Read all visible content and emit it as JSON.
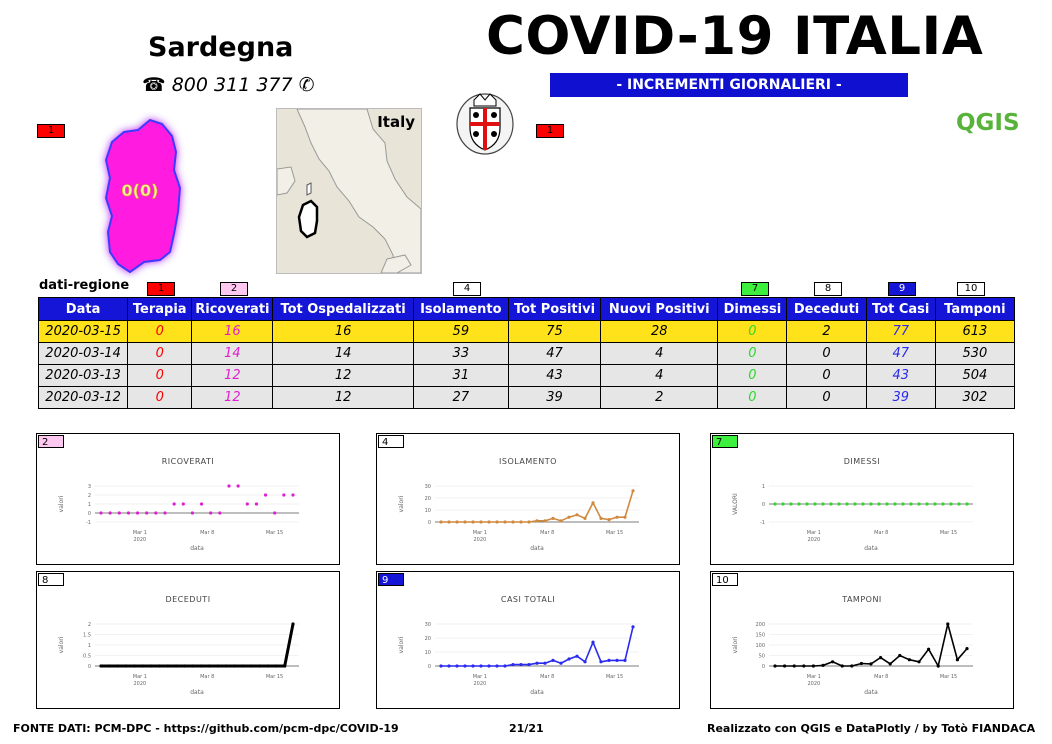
{
  "header": {
    "region": "Sardegna",
    "phone": "☎ 800 311 377",
    "title": "COVID-19 ITALIA",
    "subtitle": "- INCREMENTI GIORNALIERI -",
    "brand": "QGIS"
  },
  "map": {
    "country_label": "Italy",
    "region_value_label": "0(0)",
    "region_color": "#ff1fe0"
  },
  "badges": {
    "terapia": "1",
    "ricoverati": "2",
    "isolamento": "4",
    "dimessi": "7",
    "deceduti": "8",
    "totcasi": "9",
    "tamponi": "10"
  },
  "table": {
    "caption": "dati-regione",
    "headers": [
      "Data",
      "Terapia",
      "Ricoverati",
      "Tot Ospedalizzati",
      "Isolamento",
      "Tot Positivi",
      "Nuovi Positivi",
      "Dimessi",
      "Deceduti",
      "Tot Casi",
      "Tamponi"
    ],
    "rows": [
      [
        "2020-03-15",
        "0",
        "16",
        "16",
        "59",
        "75",
        "28",
        "0",
        "2",
        "77",
        "613"
      ],
      [
        "2020-03-14",
        "0",
        "14",
        "14",
        "33",
        "47",
        "4",
        "0",
        "0",
        "47",
        "530"
      ],
      [
        "2020-03-13",
        "0",
        "12",
        "12",
        "31",
        "43",
        "4",
        "0",
        "0",
        "43",
        "504"
      ],
      [
        "2020-03-12",
        "0",
        "12",
        "12",
        "27",
        "39",
        "2",
        "0",
        "0",
        "39",
        "302"
      ]
    ]
  },
  "chart_data": [
    {
      "type": "scatter",
      "badge": "2",
      "badge_color": "#ffc8f0",
      "title": "RICOVERATI",
      "xlabel": "data",
      "ylabel": "valori",
      "color": "#e020d0",
      "ylim": [
        -1,
        3
      ],
      "yticks": [
        "3",
        "2",
        "1",
        "0",
        "-1"
      ],
      "xticks": [
        "Mar 1\n2020",
        "Mar 8",
        "Mar 15"
      ],
      "values": [
        0,
        0,
        0,
        0,
        0,
        0,
        0,
        0,
        1,
        1,
        0,
        1,
        0,
        0,
        3,
        3,
        1,
        1,
        2,
        0,
        2,
        2
      ]
    },
    {
      "type": "line",
      "badge": "4",
      "badge_color": "#ffffff",
      "title": "ISOLAMENTO",
      "xlabel": "data",
      "ylabel": "valori",
      "color": "#d08a40",
      "ylim": [
        0,
        30
      ],
      "yticks": [
        "30",
        "20",
        "10",
        "0"
      ],
      "xticks": [
        "Mar 1\n2020",
        "Mar 8",
        "Mar 15"
      ],
      "values": [
        0,
        0,
        0,
        0,
        0,
        0,
        0,
        0,
        0,
        0,
        0,
        0,
        1,
        1,
        3,
        1,
        4,
        6,
        3,
        16,
        3,
        2,
        4,
        4,
        26
      ]
    },
    {
      "type": "scatter",
      "badge": "7",
      "badge_color": "#3df03d",
      "title": "DIMESSI",
      "xlabel": "data",
      "ylabel": "VALORI",
      "color": "#2ed82e",
      "ylim": [
        -1,
        1
      ],
      "yticks": [
        "1",
        "0",
        "-1"
      ],
      "xticks": [
        "Mar 1\n2020",
        "Mar 8",
        "Mar 15"
      ],
      "values": [
        0,
        0,
        0,
        0,
        0,
        0,
        0,
        0,
        0,
        0,
        0,
        0,
        0,
        0,
        0,
        0,
        0,
        0,
        0,
        0,
        0,
        0,
        0,
        0,
        0
      ]
    },
    {
      "type": "line",
      "badge": "8",
      "badge_color": "#ffffff",
      "title": "DECEDUTI",
      "xlabel": "data",
      "ylabel": "valori",
      "color": "#000000",
      "ylim": [
        0,
        2
      ],
      "yticks": [
        "2",
        "1.5",
        "1",
        "0.5",
        "0"
      ],
      "xticks": [
        "Mar 1\n2020",
        "Mar 8",
        "Mar 15"
      ],
      "values": [
        0,
        0,
        0,
        0,
        0,
        0,
        0,
        0,
        0,
        0,
        0,
        0,
        0,
        0,
        0,
        0,
        0,
        0,
        0,
        0,
        0,
        0,
        0,
        2
      ]
    },
    {
      "type": "line",
      "badge": "9",
      "badge_color": "#1515d8",
      "title": "CASI TOTALI",
      "xlabel": "data",
      "ylabel": "valori",
      "color": "#2a2af0",
      "ylim": [
        0,
        30
      ],
      "yticks": [
        "30",
        "20",
        "10",
        "0"
      ],
      "xticks": [
        "Mar 1\n2020",
        "Mar 8",
        "Mar 15"
      ],
      "values": [
        0,
        0,
        0,
        0,
        0,
        0,
        0,
        0,
        0,
        1,
        1,
        1,
        2,
        2,
        4,
        2,
        5,
        7,
        3,
        17,
        3,
        4,
        4,
        4,
        28
      ]
    },
    {
      "type": "line",
      "badge": "10",
      "badge_color": "#ffffff",
      "title": "TAMPONI",
      "xlabel": "data",
      "ylabel": "valori",
      "color": "#000000",
      "ylim": [
        0,
        200
      ],
      "yticks": [
        "200",
        "150",
        "100",
        "50",
        "0"
      ],
      "xticks": [
        "Mar 1\n2020",
        "Mar 8",
        "Mar 15"
      ],
      "values": [
        0,
        0,
        0,
        0,
        0,
        3,
        20,
        0,
        0,
        12,
        10,
        40,
        10,
        50,
        30,
        20,
        80,
        0,
        200,
        30,
        83
      ]
    }
  ],
  "footer": {
    "source": "FONTE DATI: PCM-DPC - https://github.com/pcm-dpc/COVID-19",
    "page": "21/21",
    "credits": "Realizzato con QGIS e DataPlotly / by Totò FIANDACA"
  }
}
